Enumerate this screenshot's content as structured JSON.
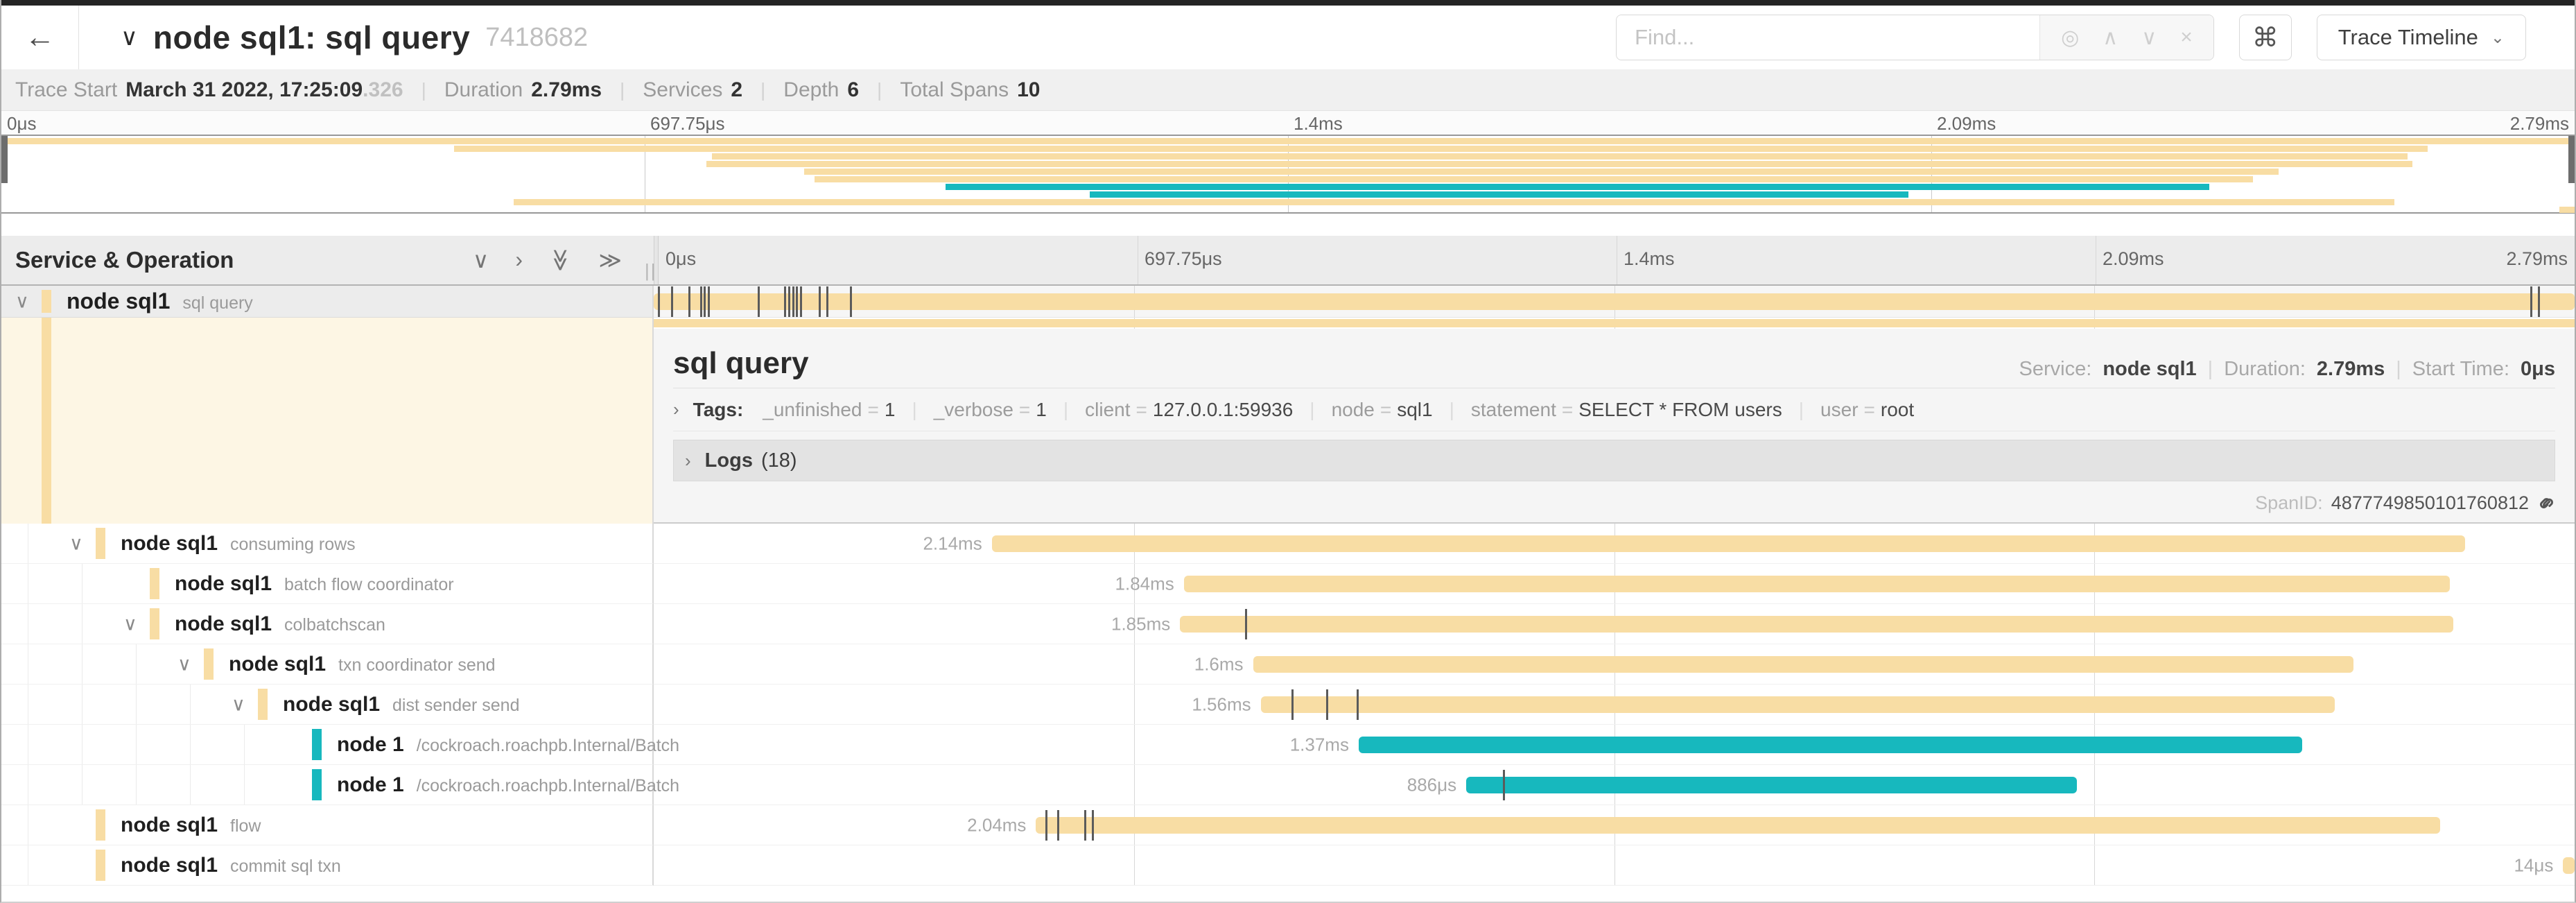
{
  "colors": {
    "tan": "#F8DDA4",
    "teal": "#17B8BE"
  },
  "header": {
    "back_icon": "←",
    "collapse_icon": "∨",
    "title": "node sql1: sql query",
    "trace_id": "7418682",
    "find_placeholder": "Find...",
    "find_icons": {
      "match": "◎",
      "prev": "∧",
      "next": "∨",
      "clear": "×"
    },
    "shortcut_icon": "⌘",
    "view_button": "Trace Timeline",
    "view_caret": "⌄"
  },
  "summary": {
    "trace_start_label": "Trace Start",
    "trace_start_value": "March 31 2022, 17:25:09",
    "trace_start_fraction": ".326",
    "duration_label": "Duration",
    "duration_value": "2.79ms",
    "services_label": "Services",
    "services_value": "2",
    "depth_label": "Depth",
    "depth_value": "6",
    "total_spans_label": "Total Spans",
    "total_spans_value": "10",
    "separator": "|"
  },
  "timebar": {
    "ticks": [
      "0μs",
      "697.75μs",
      "1.4ms",
      "2.09ms",
      "2.79ms"
    ]
  },
  "timeline_header": {
    "left_title": "Service & Operation",
    "collapse_down": "∨",
    "expand_right": "›",
    "collapse_all": "≫",
    "expand_all": "≫",
    "grip": "||"
  },
  "minimap": {
    "rows": [
      {
        "start": 0,
        "end": 100,
        "color": "tan"
      },
      {
        "start": 17.6,
        "end": 94.3,
        "color": "tan"
      },
      {
        "start": 27.6,
        "end": 93.5,
        "color": "tan"
      },
      {
        "start": 27.4,
        "end": 93.7,
        "color": "tan"
      },
      {
        "start": 31.2,
        "end": 88.5,
        "color": "tan"
      },
      {
        "start": 31.6,
        "end": 87.5,
        "color": "tan"
      },
      {
        "start": 36.7,
        "end": 85.8,
        "color": "teal"
      },
      {
        "start": 42.3,
        "end": 74.1,
        "color": "teal"
      },
      {
        "start": 19.9,
        "end": 93.0,
        "color": "tan"
      },
      {
        "start": 99.4,
        "end": 100,
        "color": "tan"
      }
    ]
  },
  "root_span": {
    "collapse_icon": "∨",
    "service": "node sql1",
    "operation": "sql query",
    "color": "tan",
    "start": 0,
    "width": 100,
    "ticks": [
      0.2,
      0.9,
      1.8,
      2.4,
      2.6,
      2.8,
      5.4,
      6.8,
      7.0,
      7.2,
      7.4,
      7.6,
      8.6,
      9.0,
      10.2,
      97.7,
      98.1
    ]
  },
  "spans": [
    {
      "depth": 1,
      "chevron": "∨",
      "service": "node sql1",
      "operation": "consuming rows",
      "color": "tan",
      "start": 17.6,
      "width": 76.7,
      "duration": "2.14ms",
      "ticks": []
    },
    {
      "depth": 2,
      "chevron": "",
      "service": "node sql1",
      "operation": "batch flow coordinator",
      "color": "tan",
      "start": 27.6,
      "width": 65.9,
      "duration": "1.84ms",
      "ticks": []
    },
    {
      "depth": 2,
      "chevron": "∨",
      "service": "node sql1",
      "operation": "colbatchscan",
      "color": "tan",
      "start": 27.4,
      "width": 66.3,
      "duration": "1.85ms",
      "ticks": [
        30.8
      ]
    },
    {
      "depth": 3,
      "chevron": "∨",
      "service": "node sql1",
      "operation": "txn coordinator send",
      "color": "tan",
      "start": 31.2,
      "width": 57.3,
      "duration": "1.6ms",
      "ticks": []
    },
    {
      "depth": 4,
      "chevron": "∨",
      "service": "node sql1",
      "operation": "dist sender send",
      "color": "tan",
      "start": 31.6,
      "width": 55.9,
      "duration": "1.56ms",
      "ticks": [
        33.2,
        35.0,
        36.6
      ]
    },
    {
      "depth": 5,
      "chevron": "",
      "service": "node 1",
      "operation": "/cockroach.roachpb.Internal/Batch",
      "color": "teal",
      "start": 36.7,
      "width": 49.1,
      "duration": "1.37ms",
      "ticks": []
    },
    {
      "depth": 5,
      "chevron": "",
      "service": "node 1",
      "operation": "/cockroach.roachpb.Internal/Batch",
      "color": "teal",
      "start": 42.3,
      "width": 31.8,
      "duration": "886μs",
      "ticks": [
        44.2
      ]
    },
    {
      "depth": 1,
      "chevron": "",
      "service": "node sql1",
      "operation": "flow",
      "color": "tan",
      "start": 19.9,
      "width": 73.1,
      "duration": "2.04ms",
      "ticks": [
        20.4,
        21.0,
        22.4,
        22.8
      ]
    },
    {
      "depth": 1,
      "chevron": "",
      "service": "node sql1",
      "operation": "commit sql txn",
      "color": "tan",
      "start": 99.4,
      "width": 0.6,
      "duration": "14μs",
      "ticks": []
    }
  ],
  "detail": {
    "title": "sql query",
    "service_label": "Service:",
    "service_value": "node sql1",
    "duration_label": "Duration:",
    "duration_value": "2.79ms",
    "start_label": "Start Time:",
    "start_value": "0μs",
    "separator": "|",
    "toggle_icon": "›",
    "tags_label": "Tags:",
    "tags": [
      {
        "key": "_unfinished",
        "value": "1"
      },
      {
        "key": "_verbose",
        "value": "1"
      },
      {
        "key": "client",
        "value": "127.0.0.1:59936"
      },
      {
        "key": "node",
        "value": "sql1"
      },
      {
        "key": "statement",
        "value": "SELECT * FROM users"
      },
      {
        "key": "user",
        "value": "root"
      }
    ],
    "logs_label": "Logs",
    "logs_count": "(18)",
    "spanid_label": "SpanID:",
    "spanid_value": "4877749850101760812"
  }
}
